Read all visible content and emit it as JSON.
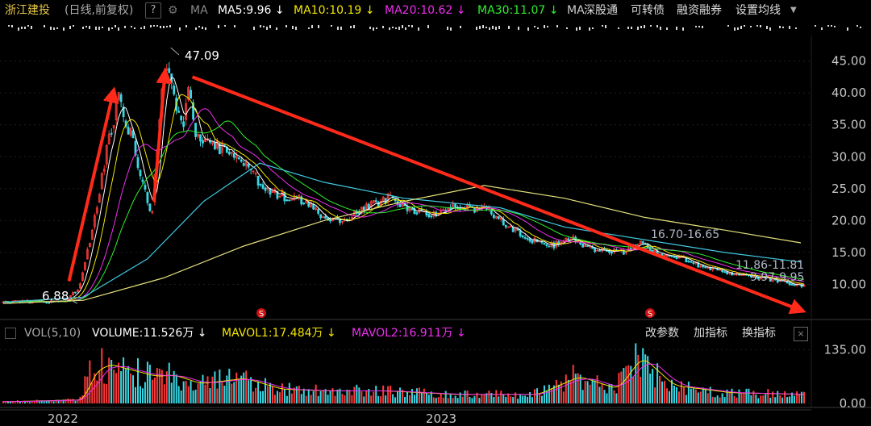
{
  "header": {
    "title": "浙江建投",
    "subtitle": "(日线,前复权)",
    "help": "?",
    "ma_label": "MA",
    "ma5": "MA5:9.96 ↓",
    "ma10": "MA10:10.19 ↓",
    "ma20": "MA20:10.62 ↓",
    "ma30": "MA30:11.07 ↓",
    "ma60": "MA",
    "buttons": [
      "深股通",
      "可转债",
      "融资融券",
      "设置均线"
    ]
  },
  "volume_header": {
    "name": "VOL(5,10)",
    "volume": "VOLUME:11.526万 ↓",
    "mavol1": "MAVOL1:17.484万 ↓",
    "mavol2": "MAVOL2:16.911万 ↓",
    "buttons": [
      "改参数",
      "加指标",
      "换指标"
    ],
    "close": "×"
  },
  "colors": {
    "up": "#ff3a3a",
    "down": "#38d9e6",
    "ma5": "#ffffff",
    "ma10": "#f2e600",
    "ma20": "#f02ef0",
    "ma30": "#2ef02e",
    "ma60": "#40c8e0",
    "ma120": "#e4e07c",
    "arrow": "#ff2a1a",
    "axis_text": "#c8c8c8"
  },
  "chart_data": {
    "type": "candlestick",
    "price_axis": {
      "ticks": [
        "45.00",
        "40.00",
        "35.00",
        "30.00",
        "25.00",
        "20.00",
        "15.00",
        "10.00"
      ],
      "ylim": [
        5.0,
        49.0
      ]
    },
    "volume_axis": {
      "ticks": [
        "135.00",
        "0.00"
      ],
      "ylim": [
        0,
        150
      ]
    },
    "x_labels": [
      "2022",
      "2023"
    ],
    "annotations": [
      "47.09",
      "6.88",
      "16.70-16.65",
      "11.86-11.81",
      "9.97-9.95"
    ],
    "price_path": [
      {
        "i": 0,
        "p": 7.2
      },
      {
        "i": 78,
        "p": 7.4
      },
      {
        "i": 95,
        "p": 9.5
      },
      {
        "i": 112,
        "p": 19.0
      },
      {
        "i": 130,
        "p": 31.5
      },
      {
        "i": 145,
        "p": 40.0
      },
      {
        "i": 152,
        "p": 34.5
      },
      {
        "i": 162,
        "p": 33.0
      },
      {
        "i": 172,
        "p": 26.0
      },
      {
        "i": 186,
        "p": 21.0
      },
      {
        "i": 194,
        "p": 36.0
      },
      {
        "i": 205,
        "p": 46.0
      },
      {
        "i": 215,
        "p": 38.0
      },
      {
        "i": 224,
        "p": 34.5
      },
      {
        "i": 232,
        "p": 41.0
      },
      {
        "i": 240,
        "p": 34.0
      },
      {
        "i": 260,
        "p": 32.0
      },
      {
        "i": 285,
        "p": 30.5
      },
      {
        "i": 305,
        "p": 28.0
      },
      {
        "i": 320,
        "p": 26.0
      },
      {
        "i": 345,
        "p": 24.0
      },
      {
        "i": 375,
        "p": 23.0
      },
      {
        "i": 400,
        "p": 20.5
      },
      {
        "i": 425,
        "p": 20.0
      },
      {
        "i": 450,
        "p": 22.0
      },
      {
        "i": 480,
        "p": 23.5
      },
      {
        "i": 505,
        "p": 22.0
      },
      {
        "i": 530,
        "p": 21.0
      },
      {
        "i": 560,
        "p": 22.0
      },
      {
        "i": 600,
        "p": 22.0
      },
      {
        "i": 625,
        "p": 19.5
      },
      {
        "i": 650,
        "p": 17.5
      },
      {
        "i": 680,
        "p": 16.0
      },
      {
        "i": 710,
        "p": 17.0
      },
      {
        "i": 740,
        "p": 15.5
      },
      {
        "i": 775,
        "p": 15.0
      },
      {
        "i": 795,
        "p": 16.8
      },
      {
        "i": 820,
        "p": 14.5
      },
      {
        "i": 850,
        "p": 14.0
      },
      {
        "i": 880,
        "p": 12.5
      },
      {
        "i": 910,
        "p": 11.8
      },
      {
        "i": 950,
        "p": 11.0
      },
      {
        "i": 995,
        "p": 9.96
      }
    ],
    "volume_path": [
      {
        "i": 0,
        "v": 5
      },
      {
        "i": 95,
        "v": 10
      },
      {
        "i": 105,
        "v": 80
      },
      {
        "i": 125,
        "v": 110
      },
      {
        "i": 150,
        "v": 95
      },
      {
        "i": 185,
        "v": 75
      },
      {
        "i": 205,
        "v": 80
      },
      {
        "i": 240,
        "v": 55
      },
      {
        "i": 295,
        "v": 70
      },
      {
        "i": 340,
        "v": 40
      },
      {
        "i": 400,
        "v": 35
      },
      {
        "i": 470,
        "v": 35
      },
      {
        "i": 560,
        "v": 25
      },
      {
        "i": 660,
        "v": 25
      },
      {
        "i": 712,
        "v": 75
      },
      {
        "i": 760,
        "v": 40
      },
      {
        "i": 790,
        "v": 130
      },
      {
        "i": 830,
        "v": 50
      },
      {
        "i": 900,
        "v": 30
      },
      {
        "i": 995,
        "v": 25
      }
    ],
    "series": [
      {
        "name": "MA5",
        "value": 9.96
      },
      {
        "name": "MA10",
        "value": 10.19
      },
      {
        "name": "MA20",
        "value": 10.62
      },
      {
        "name": "MA30",
        "value": 11.07
      }
    ],
    "long_ma_paths": [
      {
        "period": 60,
        "path": [
          {
            "i": 0,
            "p": 7.2
          },
          {
            "i": 100,
            "p": 8.0
          },
          {
            "i": 180,
            "p": 14.0
          },
          {
            "i": 250,
            "p": 23.0
          },
          {
            "i": 320,
            "p": 29.0
          },
          {
            "i": 400,
            "p": 26.0
          },
          {
            "i": 500,
            "p": 23.5
          },
          {
            "i": 620,
            "p": 22.0
          },
          {
            "i": 700,
            "p": 19.0
          },
          {
            "i": 800,
            "p": 17.0
          },
          {
            "i": 900,
            "p": 15.0
          },
          {
            "i": 995,
            "p": 13.5
          }
        ]
      },
      {
        "period": 120,
        "path": [
          {
            "i": 0,
            "p": 7.0
          },
          {
            "i": 100,
            "p": 7.5
          },
          {
            "i": 200,
            "p": 11.0
          },
          {
            "i": 300,
            "p": 16.0
          },
          {
            "i": 400,
            "p": 20.0
          },
          {
            "i": 500,
            "p": 23.0
          },
          {
            "i": 600,
            "p": 25.5
          },
          {
            "i": 700,
            "p": 23.5
          },
          {
            "i": 800,
            "p": 20.5
          },
          {
            "i": 900,
            "p": 18.5
          },
          {
            "i": 995,
            "p": 16.5
          }
        ]
      }
    ],
    "arrows": [
      {
        "from": {
          "i": 82,
          "p": 10.5
        },
        "to": {
          "i": 138,
          "p": 40.5
        }
      },
      {
        "from": {
          "i": 188,
          "p": 23.0
        },
        "to": {
          "i": 202,
          "p": 43.5
        }
      },
      {
        "from": {
          "i": 236,
          "p": 42.5
        },
        "to": {
          "i": 998,
          "p": 5.8
        }
      }
    ]
  }
}
